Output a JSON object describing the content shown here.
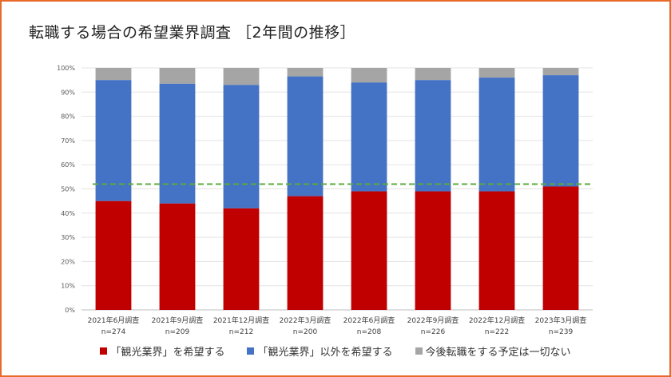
{
  "title": "転職する場合の希望業界調査 ［2年間の推移］",
  "chart_data": {
    "type": "bar",
    "stacked": true,
    "categories": [
      {
        "label": "2021年6月調査",
        "n": "n=274"
      },
      {
        "label": "2021年9月調査",
        "n": "n=209"
      },
      {
        "label": "2021年12月調査",
        "n": "n=212"
      },
      {
        "label": "2022年3月調査",
        "n": "n=200"
      },
      {
        "label": "2022年6月調査",
        "n": "n=208"
      },
      {
        "label": "2022年9月調査",
        "n": "n=226"
      },
      {
        "label": "2022年12月調査",
        "n": "n=222"
      },
      {
        "label": "2023年3月調査",
        "n": "n=239"
      }
    ],
    "series": [
      {
        "name": "「観光業界」を希望する",
        "color": "#c00000",
        "values": [
          45,
          44,
          42,
          47,
          49,
          49,
          49,
          51
        ]
      },
      {
        "name": "「観光業界」以外を希望する",
        "color": "#4472c4",
        "values": [
          50,
          49.5,
          51,
          49.5,
          45,
          46,
          47,
          46
        ]
      },
      {
        "name": "今後転職をする予定は一切ない",
        "color": "#a5a5a5",
        "values": [
          5,
          6.5,
          7,
          3.5,
          6,
          5,
          4,
          3
        ]
      }
    ],
    "y_ticks": [
      "0%",
      "10%",
      "20%",
      "30%",
      "40%",
      "50%",
      "60%",
      "70%",
      "80%",
      "90%",
      "100%"
    ],
    "ylim": [
      0,
      100
    ],
    "reference_line": {
      "value": 52,
      "color": "#5aab3c",
      "style": "dashed"
    },
    "grid": true,
    "legend_position": "bottom"
  }
}
